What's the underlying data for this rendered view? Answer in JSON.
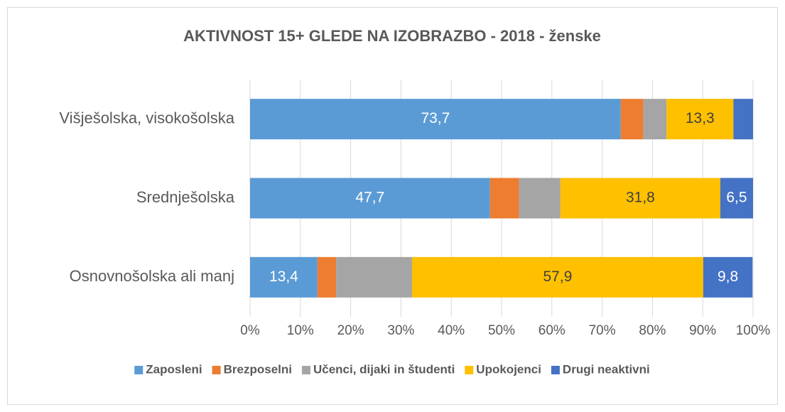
{
  "chart_data": {
    "type": "stacked-bar-horizontal",
    "title": "AKTIVNOST 15+ GLEDE NA IZOBRAZBO - 2018 - ženske",
    "categories": [
      "Višješolska, visokošolska",
      "Srednješolska",
      "Osnovnošolska ali manj"
    ],
    "series": [
      {
        "name": "Zaposleni",
        "color": "#5b9bd5",
        "values": [
          73.7,
          47.7,
          13.4
        ],
        "value_labels": [
          "73,7",
          "47,7",
          "13,4"
        ]
      },
      {
        "name": "Brezposelni",
        "color": "#ed7d31",
        "values": [
          4.5,
          5.8,
          3.7
        ]
      },
      {
        "name": "Učenci, dijaki in študenti",
        "color": "#a5a5a5",
        "values": [
          4.6,
          8.2,
          15.1
        ]
      },
      {
        "name": "Upokojenci",
        "color": "#ffc000",
        "values": [
          13.3,
          31.8,
          57.9
        ],
        "value_labels": [
          "13,3",
          "31,8",
          "57,9"
        ]
      },
      {
        "name": "Drugi neaktivni",
        "color": "#4472c4",
        "values": [
          3.9,
          6.5,
          9.8
        ],
        "value_labels": [
          null,
          "6,5",
          "9,8"
        ]
      }
    ],
    "xlim": [
      0,
      100
    ],
    "xticks": [
      {
        "value": 0,
        "label": "0%"
      },
      {
        "value": 10,
        "label": "10%"
      },
      {
        "value": 20,
        "label": "20%"
      },
      {
        "value": 30,
        "label": "30%"
      },
      {
        "value": 40,
        "label": "40%"
      },
      {
        "value": 50,
        "label": "50%"
      },
      {
        "value": 60,
        "label": "60%"
      },
      {
        "value": 70,
        "label": "70%"
      },
      {
        "value": 80,
        "label": "80%"
      },
      {
        "value": 90,
        "label": "90%"
      },
      {
        "value": 100,
        "label": "100%"
      }
    ],
    "grid": true,
    "legend": "bottom"
  }
}
